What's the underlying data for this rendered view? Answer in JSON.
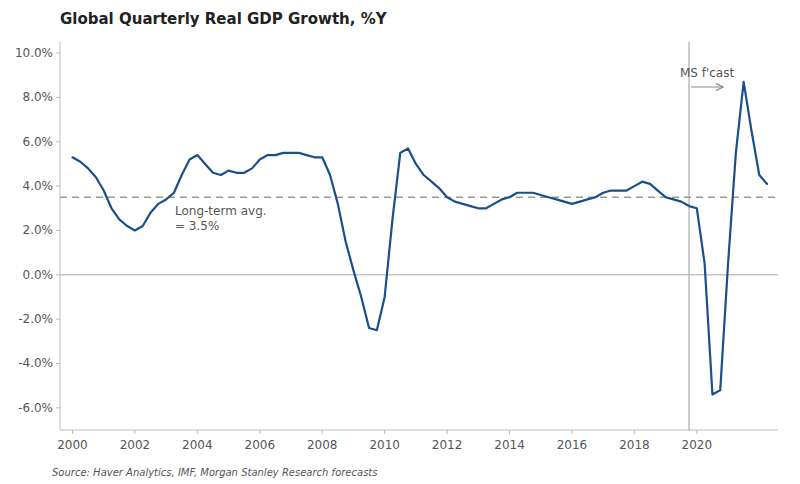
{
  "chart_data": {
    "type": "line",
    "title": "Global Quarterly Real GDP Growth, %Y",
    "source": "Source: Haver Analytics, IMF, Morgan Stanley Research forecasts",
    "color": "#1a4f8a",
    "grid": false,
    "x": [
      2000.0,
      2000.25,
      2000.5,
      2000.75,
      2001.0,
      2001.25,
      2001.5,
      2001.75,
      2002.0,
      2002.25,
      2002.5,
      2002.75,
      2003.0,
      2003.25,
      2003.5,
      2003.75,
      2004.0,
      2004.25,
      2004.5,
      2004.75,
      2005.0,
      2005.25,
      2005.5,
      2005.75,
      2006.0,
      2006.25,
      2006.5,
      2006.75,
      2007.0,
      2007.25,
      2007.5,
      2007.75,
      2008.0,
      2008.25,
      2008.5,
      2008.75,
      2009.0,
      2009.25,
      2009.5,
      2009.75,
      2010.0,
      2010.25,
      2010.5,
      2010.75,
      2011.0,
      2011.25,
      2011.5,
      2011.75,
      2012.0,
      2012.25,
      2012.5,
      2012.75,
      2013.0,
      2013.25,
      2013.5,
      2013.75,
      2014.0,
      2014.25,
      2014.5,
      2014.75,
      2015.0,
      2015.25,
      2015.5,
      2015.75,
      2016.0,
      2016.25,
      2016.5,
      2016.75,
      2017.0,
      2017.25,
      2017.5,
      2017.75,
      2018.0,
      2018.25,
      2018.5,
      2018.75,
      2019.0,
      2019.25,
      2019.5,
      2019.75,
      2020.0,
      2020.25,
      2020.5,
      2020.75,
      2021.0,
      2021.25,
      2021.5,
      2021.75,
      2022.0,
      2022.25
    ],
    "values": [
      5.3,
      5.1,
      4.8,
      4.4,
      3.8,
      3.0,
      2.5,
      2.2,
      2.0,
      2.2,
      2.8,
      3.2,
      3.4,
      3.7,
      4.5,
      5.2,
      5.4,
      5.0,
      4.6,
      4.5,
      4.7,
      4.6,
      4.6,
      4.8,
      5.2,
      5.4,
      5.4,
      5.5,
      5.5,
      5.5,
      5.4,
      5.3,
      5.3,
      4.5,
      3.2,
      1.5,
      0.2,
      -1.0,
      -2.4,
      -2.5,
      -1.0,
      2.5,
      5.5,
      5.7,
      5.0,
      4.5,
      4.2,
      3.9,
      3.5,
      3.3,
      3.2,
      3.1,
      3.0,
      3.0,
      3.2,
      3.4,
      3.5,
      3.7,
      3.7,
      3.7,
      3.6,
      3.5,
      3.4,
      3.3,
      3.2,
      3.3,
      3.4,
      3.5,
      3.7,
      3.8,
      3.8,
      3.8,
      4.0,
      4.2,
      4.1,
      3.8,
      3.5,
      3.4,
      3.3,
      3.1,
      3.0,
      0.5,
      -5.4,
      -5.2,
      0.5,
      5.5,
      8.7,
      6.5,
      4.5,
      4.1
    ],
    "xlim": [
      1999.6,
      2022.6
    ],
    "xticks": [
      2000,
      2002,
      2004,
      2006,
      2008,
      2010,
      2012,
      2014,
      2016,
      2018,
      2020
    ],
    "ylim": [
      -7.0,
      10.5
    ],
    "yticks": [
      {
        "value": -6,
        "label": "-6.0%"
      },
      {
        "value": -4,
        "label": "-4.0%"
      },
      {
        "value": -2,
        "label": "-2.0%"
      },
      {
        "value": 0,
        "label": "0.0%"
      },
      {
        "value": 2,
        "label": "2.0%"
      },
      {
        "value": 4,
        "label": "4.0%"
      },
      {
        "value": 6,
        "label": "6.0%"
      },
      {
        "value": 8,
        "label": "8.0%"
      },
      {
        "value": 10,
        "label": "10.0%"
      }
    ],
    "annotations": [
      {
        "type": "hline",
        "value": 3.5,
        "label": "Long-term avg.\n= 3.5%",
        "color": "#999999",
        "line_style": "dashed"
      },
      {
        "type": "hline",
        "value": 0,
        "color": "#aaaaaa",
        "line_style": "solid"
      },
      {
        "type": "vline",
        "value": 2019.75,
        "label": "MS f'cast",
        "color": "#999999",
        "line_style": "solid"
      }
    ]
  }
}
